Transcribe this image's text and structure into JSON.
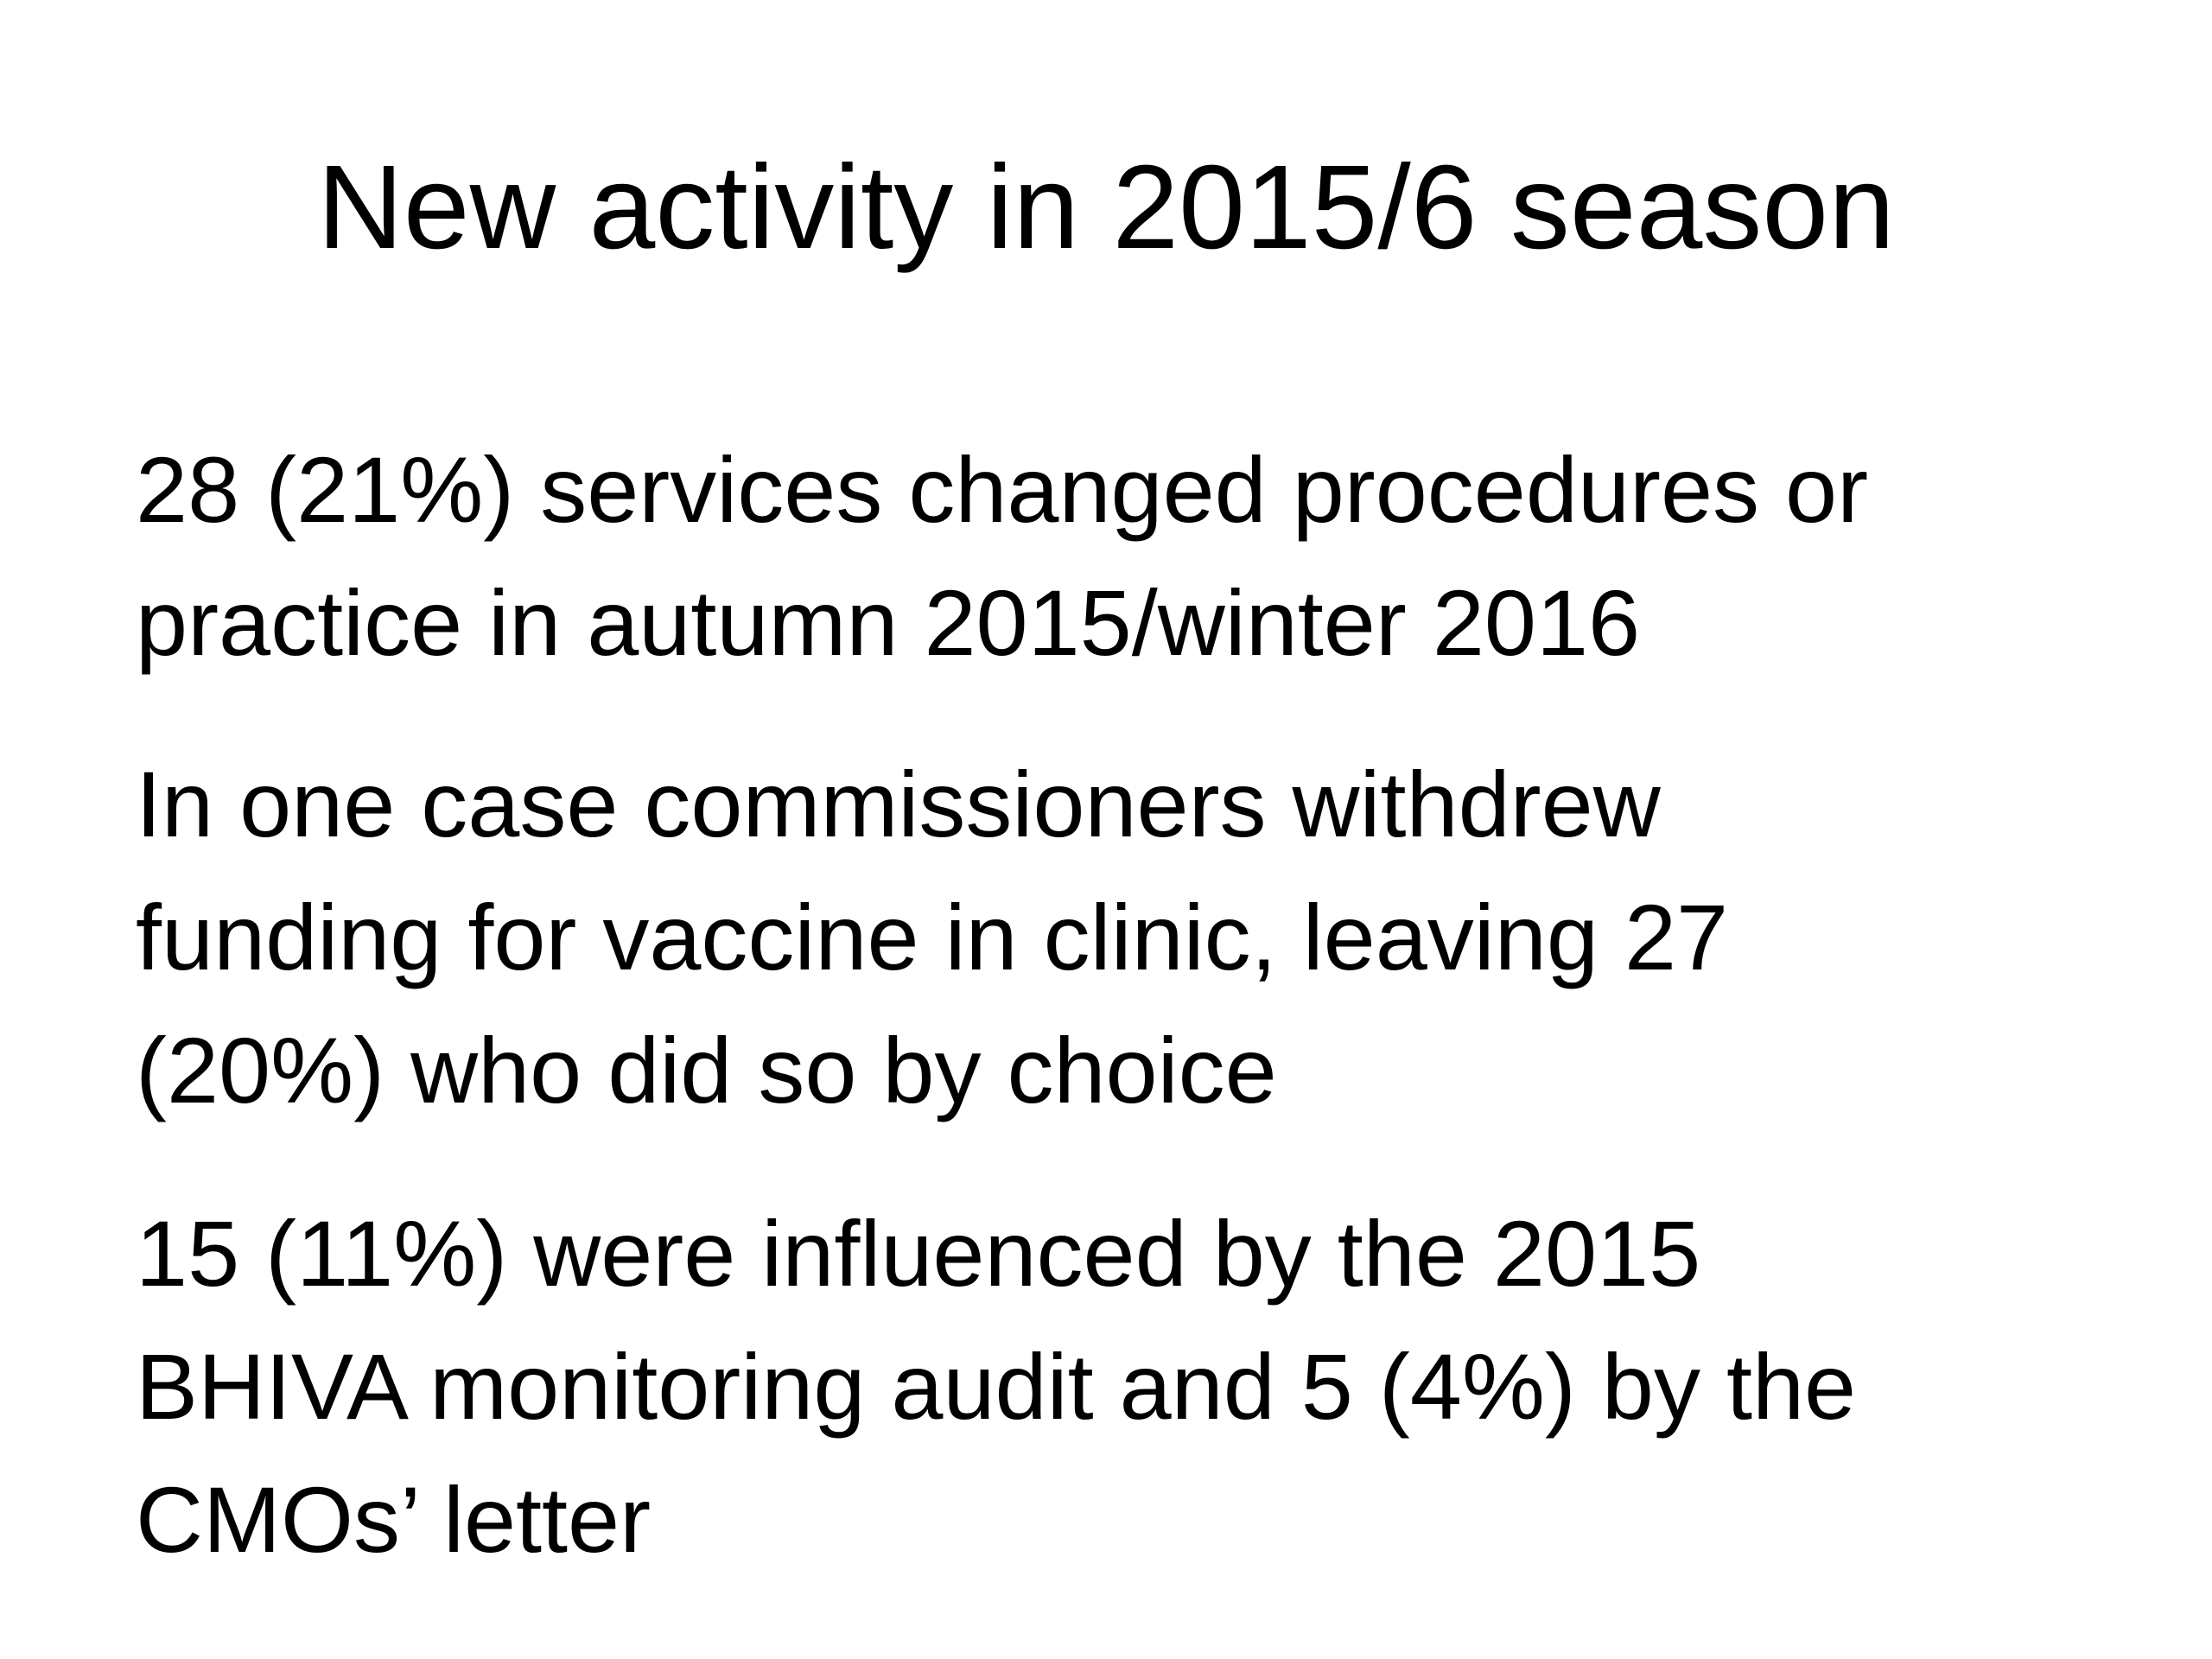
{
  "slide": {
    "title": "New activity in 2015/6 season",
    "paragraphs": [
      [
        "28 (21%) services changed procedures or",
        "practice in autumn 2015/winter 2016"
      ],
      [
        "In one case commissioners withdrew",
        "funding for vaccine in clinic, leaving 27",
        "(20%) who did so by choice"
      ],
      [
        "15 (11%) were influenced by the 2015",
        "BHIVA monitoring audit and 5 (4%) by the",
        "CMOs’ letter"
      ]
    ]
  }
}
